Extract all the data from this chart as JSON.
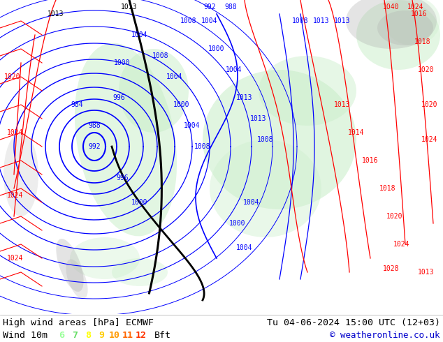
{
  "title_left": "High wind areas [hPa] ECMWF",
  "title_right": "Tu 04-06-2024 15:00 UTC (12+03)",
  "wind_label": "Wind 10m",
  "bft_label": "Bft",
  "copyright": "© weatheronline.co.uk",
  "legend_values": [
    "6",
    "7",
    "8",
    "9",
    "10",
    "11",
    "12"
  ],
  "legend_colors": [
    "#99ff99",
    "#66dd66",
    "#ffff00",
    "#ffcc00",
    "#ff9900",
    "#ff6600",
    "#ff3300"
  ],
  "bg_color": "#ffffff",
  "bottom_bar_height": 40,
  "font_color": "#000000",
  "title_fontsize": 10,
  "legend_fontsize": 9,
  "map_white_bg": "#ffffff",
  "contour_blue": "#0000ff",
  "contour_red": "#ff0000",
  "contour_black": "#000000",
  "green_fill": "#c8f0c8",
  "gray_fill": "#b8b8b8",
  "ocean_bg": "#ffffff"
}
